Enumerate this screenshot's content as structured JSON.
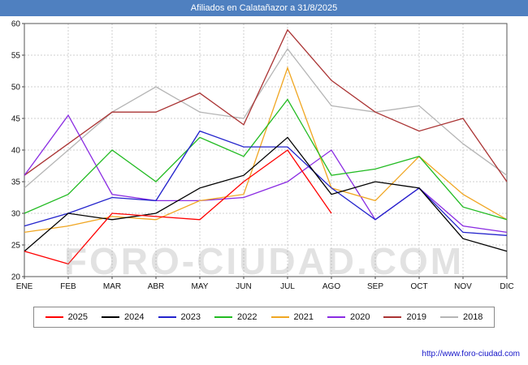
{
  "title": "Afiliados en Calatañazor a 31/8/2025",
  "watermark": "FORO-CIUDAD.COM",
  "footer": {
    "url": "http://www.foro-ciudad.com"
  },
  "chart_data": {
    "type": "line",
    "title": "Afiliados en Calatañazor a 31/8/2025",
    "xlabel": "",
    "ylabel": "",
    "ylim": [
      20,
      60
    ],
    "ytick_step": 5,
    "grid": true,
    "legend_position": "bottom",
    "categories": [
      "ENE",
      "FEB",
      "MAR",
      "ABR",
      "MAY",
      "JUN",
      "JUL",
      "AGO",
      "SEP",
      "OCT",
      "NOV",
      "DIC"
    ],
    "series": [
      {
        "name": "2025",
        "color": "#ff0000",
        "values": [
          24,
          22,
          30,
          29.5,
          29,
          35,
          40,
          30
        ]
      },
      {
        "name": "2024",
        "color": "#000000",
        "values": [
          24,
          30,
          29,
          30,
          34,
          36,
          42,
          33,
          35,
          34,
          26,
          24
        ]
      },
      {
        "name": "2023",
        "color": "#2323cc",
        "values": [
          28,
          30,
          32.5,
          32,
          43,
          40.5,
          40.5,
          34,
          29,
          34,
          27,
          26.5
        ]
      },
      {
        "name": "2022",
        "color": "#22bb22",
        "values": [
          30,
          33,
          40,
          35,
          42,
          39,
          48,
          36,
          37,
          39,
          31,
          29
        ]
      },
      {
        "name": "2021",
        "color": "#f0a622",
        "values": [
          27,
          28,
          29.5,
          29,
          32,
          33,
          53,
          34,
          32,
          39,
          33,
          29
        ]
      },
      {
        "name": "2020",
        "color": "#8a2be2",
        "values": [
          36,
          45.5,
          33,
          32,
          32,
          32.5,
          35,
          40,
          29,
          34,
          28,
          27
        ]
      },
      {
        "name": "2019",
        "color": "#aa3333",
        "values": [
          36,
          41,
          46,
          46,
          49,
          44,
          59,
          51,
          46,
          43,
          45,
          35
        ]
      },
      {
        "name": "2018",
        "color": "#b5b5b5",
        "values": [
          34,
          40,
          46,
          50,
          46,
          45,
          56,
          47,
          46,
          47,
          41,
          36
        ]
      }
    ]
  }
}
